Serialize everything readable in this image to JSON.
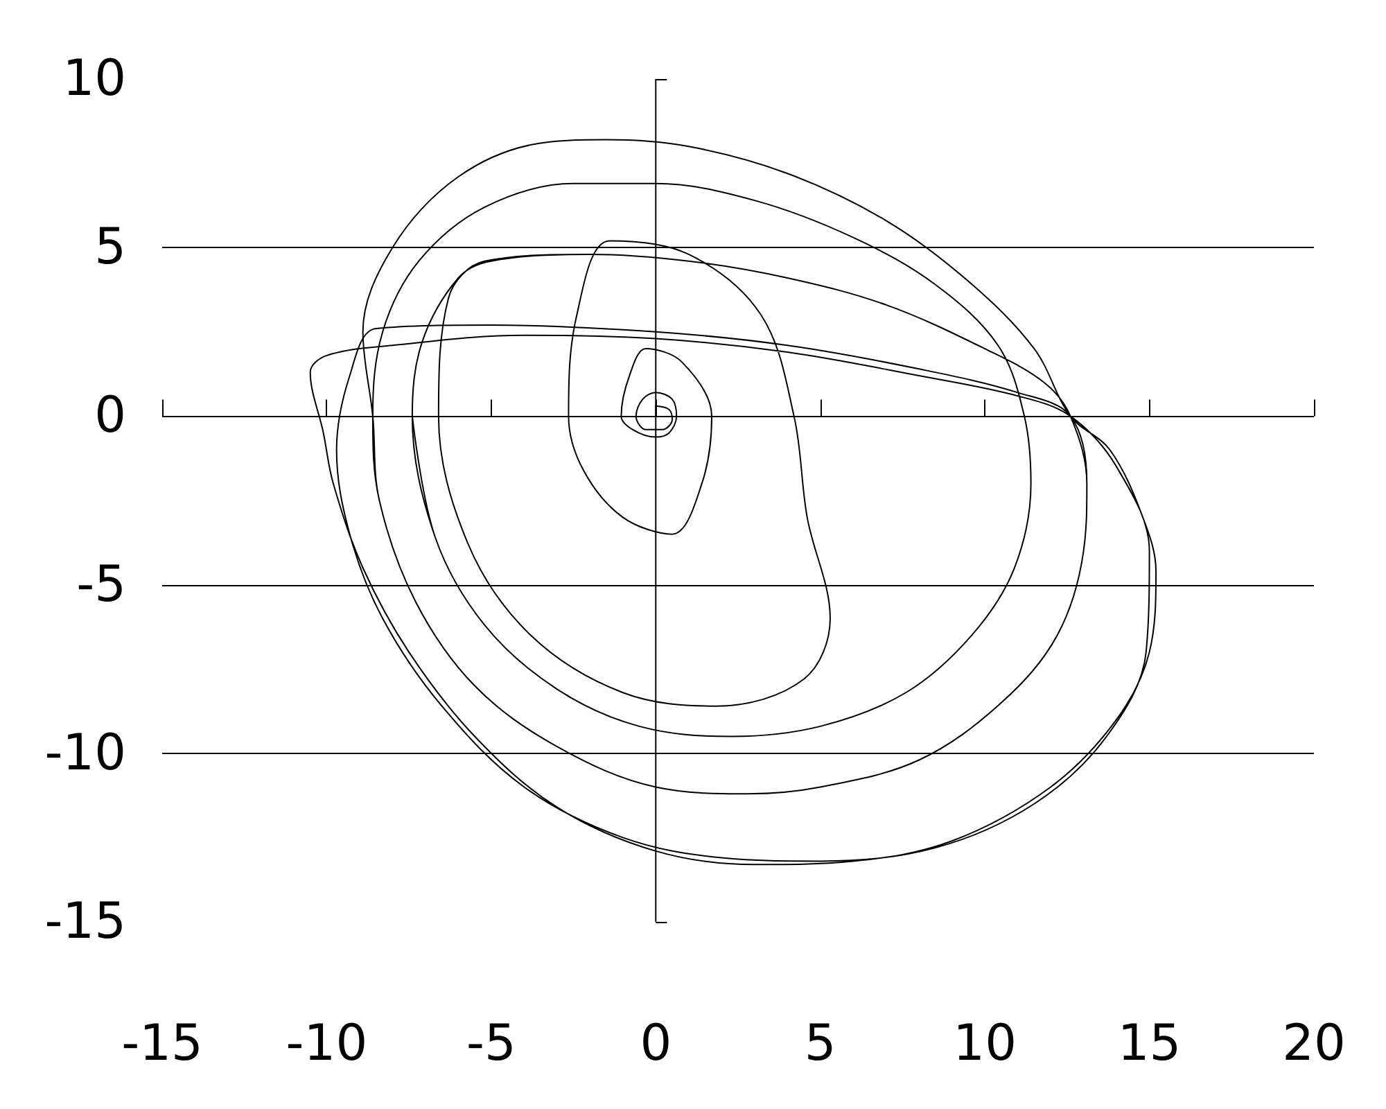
{
  "chart_data": {
    "type": "line",
    "color": "#000000",
    "marker": "none",
    "line_style": "solid",
    "grid": "y",
    "ref_lines": [
      {
        "axis": "x",
        "value": 0
      }
    ],
    "xlim": [
      -15,
      20
    ],
    "ylim": [
      -15,
      10
    ],
    "xticks": [
      -15,
      -10,
      -5,
      0,
      5,
      10,
      15,
      20
    ],
    "yticks": [
      -15,
      -10,
      -5,
      0,
      5,
      10
    ],
    "x": [
      0,
      0,
      0.4,
      0.5,
      0.2,
      -0.3,
      -0.6,
      -0.4,
      0,
      0.5,
      0.63,
      0.4,
      0,
      -0.7,
      -1.05,
      -0.8,
      -0.3,
      0.8,
      1.7,
      1.4,
      0.5,
      -1,
      -2.2,
      -2.65,
      -2.4,
      -1.4,
      1,
      3.2,
      4.2,
      4.6,
      5.3,
      4.5,
      1.85,
      -1,
      -3.8,
      -5.7,
      -6.6,
      -6.3,
      -5.2,
      -2,
      1,
      4,
      7,
      10,
      11.8,
      12.6,
      13.1,
      13,
      12.2,
      10.5,
      8,
      5,
      2.8,
      0,
      -3,
      -5.5,
      -7.3,
      -8.4,
      -8.6,
      -8.3,
      -7.2,
      -5.2,
      -2.5,
      0,
      3,
      6,
      8.5,
      10.4,
      11.2,
      11.4,
      10.9,
      9.6,
      7.6,
      5,
      2.3,
      -0.5,
      -3,
      -5.2,
      -6.7,
      -7.4,
      -7.1,
      -6,
      -5,
      -2,
      1,
      4,
      7,
      10,
      11.8,
      12.6,
      13.1,
      13,
      12.2,
      10.5,
      8,
      5,
      2.8,
      0,
      -3,
      -5.5,
      -7.3,
      -8.4,
      -8.6,
      -8.9,
      -8,
      -6,
      -3.5,
      -1.5,
      1,
      4,
      7,
      9.5,
      11.5,
      12.6,
      13.8,
      14.8,
      15.2,
      15,
      14,
      12,
      9,
      6,
      3,
      0,
      -3,
      -5.5,
      -7.5,
      -8.9,
      -9.8,
      -10.1,
      -10.5,
      -10,
      -8,
      -4,
      0,
      4,
      8,
      11,
      12.6,
      14,
      15,
      14.9,
      13.7,
      11.5,
      8.5,
      5,
      2,
      -1,
      -4,
      -6.5,
      -8.3,
      -9.3,
      -9.7,
      -9.3,
      -8.5,
      -5,
      0,
      4,
      8,
      11,
      12.6,
      13.1,
      13,
      12.2,
      10.5,
      8,
      5,
      2.8,
      0,
      -3,
      -5.5,
      -7.3,
      -8.4,
      -8.6,
      -8.3,
      -7.2,
      -5.2,
      -2.5,
      0,
      3,
      6,
      8.5,
      10.4,
      11.2,
      11.4,
      10.9,
      9.6,
      7.6,
      5,
      2.3,
      -0.5,
      -3,
      -5.2,
      -6.7,
      -7.4
    ],
    "values": [
      0,
      0.3,
      0.2,
      -0.1,
      -0.4,
      -0.4,
      0,
      0.5,
      0.7,
      0.5,
      0,
      -0.5,
      -0.62,
      -0.4,
      0,
      1.2,
      2,
      1.6,
      0,
      -2,
      -3.5,
      -3,
      -1.6,
      0,
      3,
      5.2,
      4.8,
      3,
      0,
      -3,
      -6,
      -7.8,
      -8.6,
      -8.2,
      -6.5,
      -3.8,
      0,
      3.5,
      4.6,
      4.8,
      4.6,
      4.1,
      3.3,
      2,
      1,
      0,
      -2,
      -4,
      -6.5,
      -8.5,
      -10.2,
      -11,
      -11.2,
      -11,
      -9.8,
      -8,
      -5.5,
      -2.5,
      0,
      2.5,
      4.6,
      6.2,
      6.9,
      6.9,
      6.4,
      5.3,
      3.9,
      2.1,
      0,
      -2,
      -4.5,
      -6.5,
      -8.2,
      -9.2,
      -9.5,
      -9.2,
      -8.1,
      -6.2,
      -3.6,
      0,
      2.2,
      4.1,
      4.6,
      4.8,
      4.6,
      4.1,
      3.3,
      2,
      1,
      0,
      -2,
      -4,
      -6.5,
      -8.5,
      -10.2,
      -11,
      -11.2,
      -11,
      -9.8,
      -8,
      -5.5,
      -2.5,
      0,
      2.5,
      5,
      7.1,
      8.1,
      8.2,
      8,
      7.2,
      5.8,
      4,
      2,
      0,
      -1,
      -3,
      -4.6,
      -7,
      -9,
      -11,
      -12.6,
      -13.2,
      -13.3,
      -12.9,
      -11.6,
      -9.5,
      -7,
      -4.5,
      -2,
      -0.5,
      1.3,
      1.8,
      2.1,
      2.4,
      2.3,
      1.9,
      1.2,
      0.6,
      0,
      -1.5,
      -4,
      -7,
      -9.5,
      -11.5,
      -12.8,
      -13.2,
      -13.1,
      -12.5,
      -11,
      -8.6,
      -6,
      -3.5,
      -1,
      1.2,
      2.6,
      2.7,
      2.5,
      2.1,
      1.4,
      0.7,
      0,
      -2,
      -4,
      -6.5,
      -8.5,
      -10.2,
      -11,
      -11.2,
      -11,
      -9.8,
      -8,
      -5.5,
      -2.5,
      0,
      2.5,
      4.6,
      6.2,
      6.9,
      6.9,
      6.4,
      5.3,
      3.9,
      2.1,
      0,
      -2,
      -4.5,
      -6.5,
      -8.2,
      -9.2,
      -9.5,
      -9.2,
      -8.1,
      -6.2,
      -3.6,
      0
    ]
  }
}
